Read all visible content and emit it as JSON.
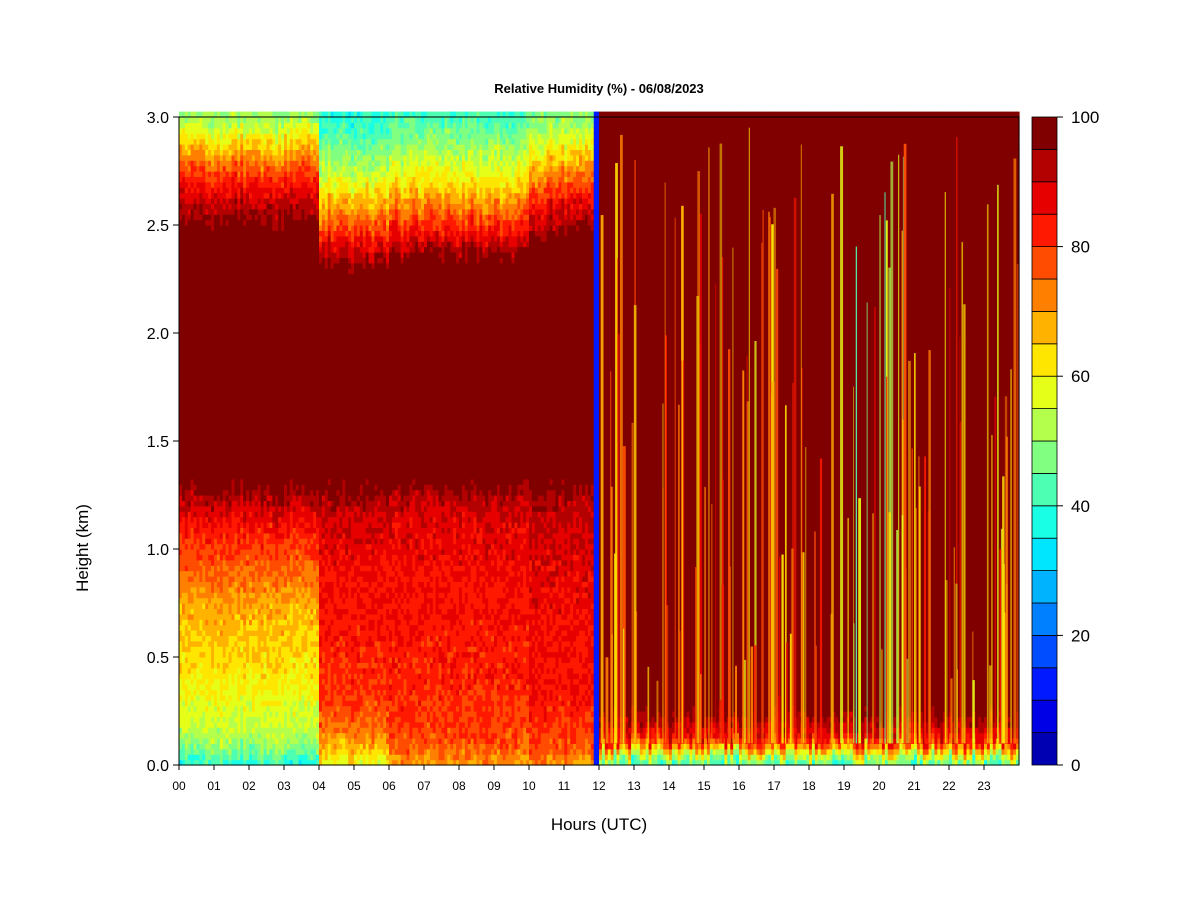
{
  "chart_data": {
    "type": "heatmap",
    "title": "Relative Humidity (%) - 06/08/2023",
    "xlabel": "Hours (UTC)",
    "ylabel": "Height (km)",
    "xlim": [
      0,
      24
    ],
    "ylim": [
      0.0,
      3.0
    ],
    "x_ticks": [
      {
        "value": 0,
        "label": "00"
      },
      {
        "value": 1,
        "label": "01"
      },
      {
        "value": 2,
        "label": "02"
      },
      {
        "value": 3,
        "label": "03"
      },
      {
        "value": 4,
        "label": "04"
      },
      {
        "value": 5,
        "label": "05"
      },
      {
        "value": 6,
        "label": "06"
      },
      {
        "value": 7,
        "label": "07"
      },
      {
        "value": 8,
        "label": "08"
      },
      {
        "value": 9,
        "label": "09"
      },
      {
        "value": 10,
        "label": "10"
      },
      {
        "value": 11,
        "label": "11"
      },
      {
        "value": 12,
        "label": "12"
      },
      {
        "value": 13,
        "label": "13"
      },
      {
        "value": 14,
        "label": "14"
      },
      {
        "value": 15,
        "label": "15"
      },
      {
        "value": 16,
        "label": "16"
      },
      {
        "value": 17,
        "label": "17"
      },
      {
        "value": 18,
        "label": "18"
      },
      {
        "value": 19,
        "label": "19"
      },
      {
        "value": 20,
        "label": "20"
      },
      {
        "value": 21,
        "label": "21"
      },
      {
        "value": 22,
        "label": "22"
      },
      {
        "value": 23,
        "label": "23"
      }
    ],
    "y_ticks": [
      {
        "value": 0.0,
        "label": "0.0"
      },
      {
        "value": 0.5,
        "label": "0.5"
      },
      {
        "value": 1.0,
        "label": "1.0"
      },
      {
        "value": 1.5,
        "label": "1.5"
      },
      {
        "value": 2.0,
        "label": "2.0"
      },
      {
        "value": 2.5,
        "label": "2.5"
      },
      {
        "value": 3.0,
        "label": "3.0"
      }
    ],
    "colorbar": {
      "range": [
        0,
        100
      ],
      "step": 5,
      "tick_labels": [
        {
          "value": 0,
          "label": "0"
        },
        {
          "value": 20,
          "label": "20"
        },
        {
          "value": 40,
          "label": "40"
        },
        {
          "value": 60,
          "label": "60"
        },
        {
          "value": 80,
          "label": "80"
        },
        {
          "value": 100,
          "label": "100"
        }
      ],
      "colors": [
        "#000080",
        "#0000b3",
        "#0000e6",
        "#0019ff",
        "#004cff",
        "#0080ff",
        "#00b3ff",
        "#00e6ff",
        "#19ffe6",
        "#4cffb3",
        "#80ff80",
        "#b3ff4c",
        "#e6ff19",
        "#ffe600",
        "#ffb300",
        "#ff8000",
        "#ff4c00",
        "#ff1900",
        "#e60000",
        "#b30000",
        "#800000"
      ]
    },
    "rh_profiles": [
      {
        "hours": [
          0,
          4
        ],
        "heights_km": [
          0.0,
          0.05,
          0.15,
          0.4,
          0.7,
          0.9,
          1.1,
          1.3,
          2.5,
          2.7,
          2.9,
          3.0
        ],
        "values": [
          40,
          48,
          56,
          64,
          70,
          78,
          86,
          100,
          100,
          86,
          64,
          52
        ]
      },
      {
        "hours": [
          4,
          6
        ],
        "heights_km": [
          0.0,
          0.05,
          0.15,
          0.3,
          0.6,
          0.9,
          1.15,
          1.3,
          2.3,
          2.5,
          2.7,
          3.0
        ],
        "values": [
          60,
          66,
          76,
          82,
          86,
          88,
          92,
          100,
          100,
          80,
          60,
          40
        ]
      },
      {
        "hours": [
          6,
          10
        ],
        "heights_km": [
          0.0,
          0.05,
          0.1,
          0.3,
          0.6,
          0.9,
          1.2,
          1.3,
          2.35,
          2.5,
          2.7,
          3.0
        ],
        "values": [
          72,
          76,
          80,
          84,
          86,
          88,
          92,
          100,
          100,
          84,
          64,
          44
        ]
      },
      {
        "hours": [
          10,
          11.85
        ],
        "heights_km": [
          0.0,
          0.05,
          0.15,
          0.3,
          0.6,
          0.9,
          1.2,
          1.3,
          2.45,
          2.6,
          2.8,
          3.0
        ],
        "values": [
          72,
          78,
          82,
          86,
          88,
          90,
          94,
          100,
          100,
          88,
          68,
          50
        ]
      },
      {
        "hours": [
          11.85,
          12.0
        ],
        "heights_km": [
          0.0,
          3.0
        ],
        "values": [
          15,
          15
        ]
      },
      {
        "hours": [
          12.0,
          24
        ],
        "heights_km": [
          0.0,
          0.05,
          0.12,
          0.25,
          3.0
        ],
        "values": [
          44,
          60,
          88,
          100,
          100
        ]
      }
    ]
  }
}
